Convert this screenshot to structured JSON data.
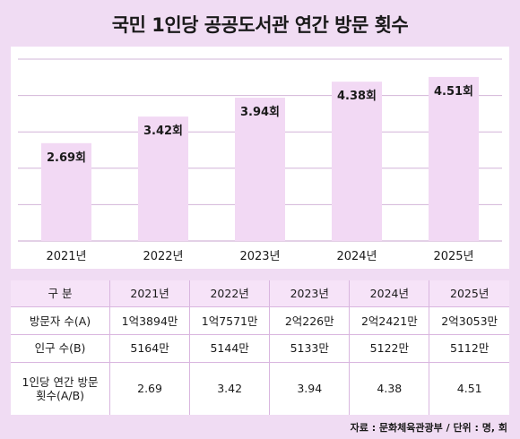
{
  "title": "국민 1인당 공공도서관 연간 방문 횟수",
  "colors": {
    "background": "#f0dcf3",
    "bar": "#f2d9f4",
    "grid": "#d2b4d8",
    "table_header": "#f6e3f8",
    "table_border": "#d9b6df"
  },
  "chart_data": {
    "type": "bar",
    "title": "국민 1인당 공공도서관 연간 방문 횟수",
    "categories": [
      "2021년",
      "2022년",
      "2023년",
      "2024년",
      "2025년"
    ],
    "values": [
      2.69,
      3.42,
      3.94,
      4.38,
      4.51
    ],
    "data_labels": [
      "2.69회",
      "3.42회",
      "3.94회",
      "4.38회",
      "4.51회"
    ],
    "ylim": [
      0,
      5
    ],
    "grid": true,
    "legend": "none"
  },
  "table": {
    "header": [
      "구 분",
      "2021년",
      "2022년",
      "2023년",
      "2024년",
      "2025년"
    ],
    "rows": [
      {
        "label": "방문자 수(A)",
        "values": [
          "1억3894만",
          "1억7571만",
          "2억226만",
          "2억2421만",
          "2억3053만"
        ]
      },
      {
        "label": "인구 수(B)",
        "values": [
          "5164만",
          "5144만",
          "5133만",
          "5122만",
          "5112만"
        ]
      },
      {
        "label_line1": "1인당 연간 방문",
        "label_line2": "횟수(A/B)",
        "values": [
          "2.69",
          "3.42",
          "3.94",
          "4.38",
          "4.51"
        ]
      }
    ]
  },
  "source": "자료 : 문화체육관광부 / 단위 : 명, 회"
}
